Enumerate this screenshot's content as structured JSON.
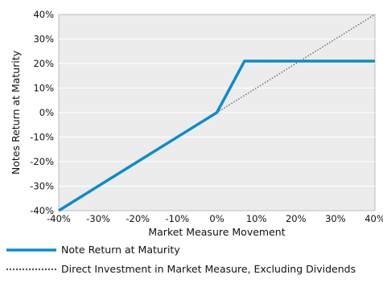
{
  "chart_data": {
    "type": "line",
    "title": "",
    "xlabel": "Market Measure Movement",
    "ylabel": "Notes Return at Maturity",
    "xlim": [
      -40,
      40
    ],
    "ylim": [
      -40,
      40
    ],
    "x_ticks": [
      -40,
      -30,
      -20,
      -10,
      0,
      10,
      20,
      30,
      40
    ],
    "y_ticks": [
      -40,
      -30,
      -20,
      -10,
      0,
      10,
      20,
      30,
      40
    ],
    "x_tick_labels": [
      "-40%",
      "-30%",
      "-20%",
      "-10%",
      "0%",
      "10%",
      "20%",
      "30%",
      "40%"
    ],
    "y_tick_labels": [
      "-40%",
      "-30%",
      "-20%",
      "-10%",
      "0%",
      "10%",
      "20%",
      "30%",
      "40%"
    ],
    "grid": "horizontal",
    "background_color": "#ececec",
    "legend_position": "bottom",
    "series": [
      {
        "name": "Note Return at Maturity",
        "style": "solid",
        "color": "#0a8ccf",
        "x": [
          -40,
          0,
          7,
          40
        ],
        "y": [
          -40,
          0,
          21,
          21
        ]
      },
      {
        "name": "Direct Investment in Market Measure, Excluding Dividends",
        "style": "dotted",
        "color": "#555555",
        "x": [
          0,
          40
        ],
        "y": [
          0,
          40
        ]
      }
    ]
  }
}
